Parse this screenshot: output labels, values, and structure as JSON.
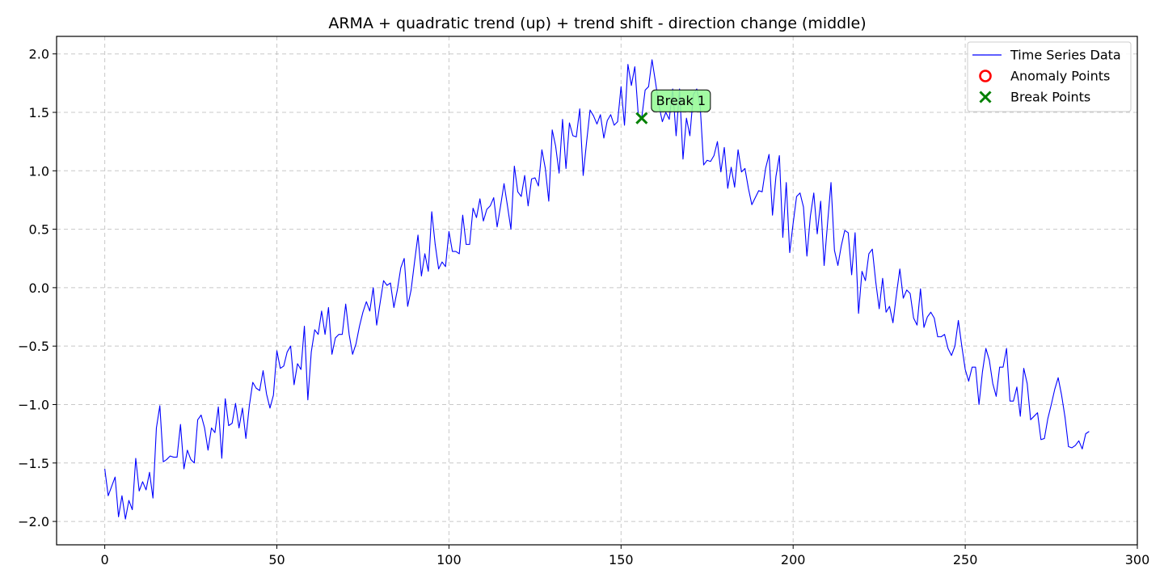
{
  "chart_data": {
    "type": "line",
    "title": "ARMA + quadratic trend (up) + trend shift - direction change (middle)",
    "xlabel": "",
    "ylabel": "",
    "xlim": [
      -14,
      300
    ],
    "ylim": [
      -2.2,
      2.15
    ],
    "x_ticks": [
      0,
      50,
      100,
      150,
      200,
      250,
      300
    ],
    "y_ticks": [
      -2.0,
      -1.5,
      -1.0,
      -0.5,
      0.0,
      0.5,
      1.0,
      1.5,
      2.0
    ],
    "x_tick_labels": [
      "0",
      "50",
      "100",
      "150",
      "200",
      "250",
      "300"
    ],
    "y_tick_labels": [
      "−2.0",
      "−1.5",
      "−1.0",
      "−0.5",
      "0.0",
      "0.5",
      "1.0",
      "1.5",
      "2.0"
    ],
    "grid": true,
    "legend_position": "top-right",
    "colors": {
      "series": "#0000ff",
      "anomaly": "#ff0000",
      "break": "#008000",
      "annotation_bg": "#98fb98"
    },
    "series": [
      {
        "name": "Time Series Data",
        "x_start": 0,
        "values": [
          -1.55,
          -1.78,
          -1.7,
          -1.62,
          -1.96,
          -1.78,
          -1.98,
          -1.82,
          -1.9,
          -1.46,
          -1.74,
          -1.66,
          -1.73,
          -1.58,
          -1.8,
          -1.2,
          -1.01,
          -1.49,
          -1.47,
          -1.44,
          -1.45,
          -1.45,
          -1.17,
          -1.55,
          -1.39,
          -1.47,
          -1.5,
          -1.13,
          -1.09,
          -1.2,
          -1.39,
          -1.2,
          -1.24,
          -1.02,
          -1.46,
          -0.95,
          -1.18,
          -1.16,
          -0.99,
          -1.2,
          -1.03,
          -1.29,
          -1.01,
          -0.81,
          -0.86,
          -0.88,
          -0.71,
          -0.91,
          -1.03,
          -0.92,
          -0.54,
          -0.69,
          -0.67,
          -0.55,
          -0.5,
          -0.83,
          -0.65,
          -0.7,
          -0.33,
          -0.96,
          -0.55,
          -0.36,
          -0.4,
          -0.2,
          -0.4,
          -0.17,
          -0.57,
          -0.43,
          -0.4,
          -0.4,
          -0.14,
          -0.4,
          -0.57,
          -0.48,
          -0.33,
          -0.21,
          -0.12,
          -0.2,
          0.0,
          -0.32,
          -0.13,
          0.06,
          0.02,
          0.04,
          -0.17,
          -0.02,
          0.17,
          0.25,
          -0.16,
          -0.02,
          0.22,
          0.45,
          0.1,
          0.29,
          0.14,
          0.65,
          0.37,
          0.16,
          0.22,
          0.18,
          0.48,
          0.31,
          0.31,
          0.29,
          0.62,
          0.37,
          0.37,
          0.68,
          0.6,
          0.76,
          0.57,
          0.67,
          0.7,
          0.77,
          0.52,
          0.7,
          0.89,
          0.7,
          0.5,
          1.04,
          0.82,
          0.78,
          0.96,
          0.7,
          0.93,
          0.94,
          0.87,
          1.18,
          1.02,
          0.74,
          1.35,
          1.21,
          0.98,
          1.44,
          1.02,
          1.41,
          1.3,
          1.29,
          1.53,
          0.96,
          1.25,
          1.52,
          1.47,
          1.4,
          1.48,
          1.28,
          1.43,
          1.48,
          1.39,
          1.42,
          1.72,
          1.39,
          1.91,
          1.73,
          1.89,
          1.48,
          1.45,
          1.69,
          1.72,
          1.95,
          1.76,
          1.56,
          1.42,
          1.5,
          1.44,
          1.7,
          1.3,
          1.7,
          1.1,
          1.45,
          1.3,
          1.65,
          1.7,
          1.55,
          1.05,
          1.09,
          1.08,
          1.13,
          1.25,
          0.99,
          1.2,
          0.85,
          1.03,
          0.86,
          1.18,
          0.99,
          1.02,
          0.85,
          0.71,
          0.77,
          0.83,
          0.82,
          1.02,
          1.14,
          0.62,
          0.95,
          1.13,
          0.43,
          0.9,
          0.3,
          0.55,
          0.78,
          0.81,
          0.69,
          0.27,
          0.61,
          0.81,
          0.46,
          0.74,
          0.19,
          0.55,
          0.9,
          0.32,
          0.19,
          0.36,
          0.49,
          0.47,
          0.11,
          0.47,
          -0.22,
          0.14,
          0.06,
          0.29,
          0.33,
          0.05,
          -0.18,
          0.08,
          -0.21,
          -0.16,
          -0.3,
          -0.06,
          0.16,
          -0.09,
          -0.02,
          -0.05,
          -0.26,
          -0.32,
          -0.01,
          -0.34,
          -0.25,
          -0.21,
          -0.26,
          -0.42,
          -0.42,
          -0.4,
          -0.52,
          -0.58,
          -0.5,
          -0.28,
          -0.5,
          -0.7,
          -0.8,
          -0.68,
          -0.68,
          -1.0,
          -0.72,
          -0.52,
          -0.62,
          -0.82,
          -0.93,
          -0.68,
          -0.68,
          -0.52,
          -0.97,
          -0.97,
          -0.85,
          -1.1,
          -0.69,
          -0.82,
          -1.13,
          -1.1,
          -1.07,
          -1.3,
          -1.29,
          -1.12,
          -1.0,
          -0.87,
          -0.77,
          -0.92,
          -1.11,
          -1.36,
          -1.37,
          -1.35,
          -1.31,
          -1.38,
          -1.25,
          -1.23
        ]
      }
    ],
    "break_points": [
      {
        "x": 156,
        "y": 1.45,
        "label": "Break 1"
      }
    ],
    "anomaly_points": [],
    "legend": [
      {
        "label": "Time Series Data",
        "marker": "line"
      },
      {
        "label": "Anomaly Points",
        "marker": "circle"
      },
      {
        "label": "Break Points",
        "marker": "x"
      }
    ]
  }
}
